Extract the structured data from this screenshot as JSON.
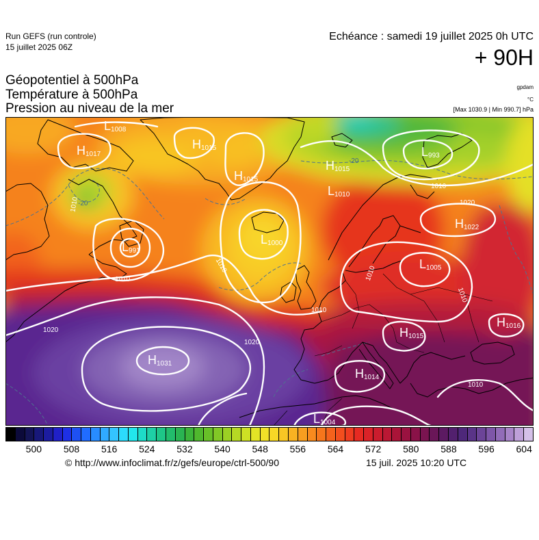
{
  "header": {
    "run": "Run GEFS (run controle)",
    "run_date": "15 juillet 2025 06Z",
    "echeance": "Echéance : samedi 19 juillet 2025 0h UTC",
    "lead": "+ 90H"
  },
  "titles": [
    "Géopotentiel à 500hPa",
    "Température à 500hPa",
    "Pression au niveau de la mer"
  ],
  "units": {
    "geopotential": "gpdam",
    "temperature": "°C",
    "pressure": "[Max 1030.9 | Min 990.7] hPa"
  },
  "pressure_centers": [
    {
      "type": "H",
      "value": "1017"
    },
    {
      "type": "L",
      "value": "1008"
    },
    {
      "type": "H",
      "value": "1015"
    },
    {
      "type": "H",
      "value": "1015"
    },
    {
      "type": "L",
      "value": "1000"
    },
    {
      "type": "L",
      "value": "1010"
    },
    {
      "type": "H",
      "value": "1015"
    },
    {
      "type": "L",
      "value": "993"
    },
    {
      "type": "H",
      "value": "1022"
    },
    {
      "type": "L",
      "value": "1005"
    },
    {
      "type": "H",
      "value": "1015"
    },
    {
      "type": "H",
      "value": "1016"
    },
    {
      "type": "H",
      "value": "1014"
    },
    {
      "type": "L",
      "value": "991"
    },
    {
      "type": "H",
      "value": "1031"
    },
    {
      "type": "L",
      "value": "1004"
    }
  ],
  "isobar_labels": [
    "1010",
    "1020",
    "1020",
    "1010",
    "1010",
    "1010",
    "1020",
    "1010",
    "1010",
    "1010",
    "1010"
  ],
  "isotherm_labels": [
    "-20",
    "-20"
  ],
  "colorbar": {
    "ticks": [
      "500",
      "508",
      "516",
      "524",
      "532",
      "540",
      "548",
      "556",
      "564",
      "572",
      "580",
      "588",
      "596",
      "604"
    ],
    "colors": [
      "#000000",
      "#0c0a3a",
      "#141456",
      "#18187a",
      "#1c1ca0",
      "#2020c8",
      "#1e30e6",
      "#1e50f2",
      "#206cff",
      "#288cff",
      "#30aaff",
      "#34c4ff",
      "#2cdcfc",
      "#22e6ec",
      "#1edcc8",
      "#1ed0a6",
      "#1ec688",
      "#22bc6c",
      "#2ab452",
      "#3cb43a",
      "#50b82e",
      "#68c028",
      "#82c826",
      "#9cd024",
      "#b6d824",
      "#cee024",
      "#e2e426",
      "#f2e228",
      "#f8d826",
      "#f8c624",
      "#f8b222",
      "#f89e20",
      "#f88a1e",
      "#f6761c",
      "#f4621c",
      "#f24e1e",
      "#ee3c20",
      "#e62a22",
      "#da2228",
      "#ca1c2e",
      "#ba1834",
      "#aa1438",
      "#9a1240",
      "#8a1248",
      "#7a1450",
      "#6a1658",
      "#5c1a62",
      "#52206e",
      "#4e287a",
      "#5a3488",
      "#6c4498",
      "#7e56a8",
      "#926cb8",
      "#a884c8",
      "#bea0d8",
      "#d4c0e8"
    ]
  },
  "footer": {
    "source": "© http://www.infoclimat.fr/z/gefs/europe/ctrl-500/90",
    "timestamp": "15 juil. 2025 10:20 UTC"
  }
}
